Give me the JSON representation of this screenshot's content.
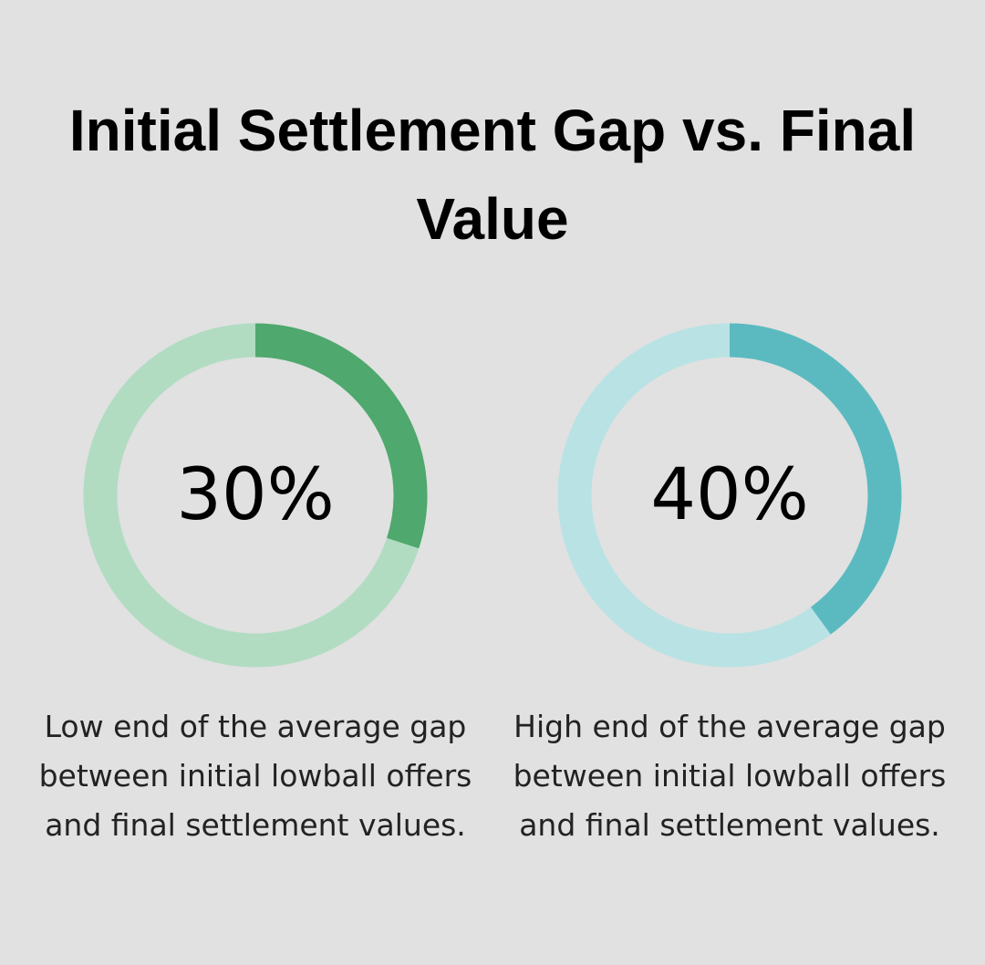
{
  "title": "Initial Settlement Gap vs. Final Value",
  "chart_data": [
    {
      "type": "donut",
      "values": [
        30
      ],
      "value_labels": [
        "30%"
      ],
      "color": "#4fa86d",
      "track_color": "#b1dcc2",
      "caption": "Low end of the average gap between initial lowball offers and final settlement values."
    },
    {
      "type": "donut",
      "values": [
        40
      ],
      "value_labels": [
        "40%"
      ],
      "color": "#5bbac0",
      "track_color": "#b9e2e4",
      "caption": "High end of the average gap between initial lowball offers and final settlement values."
    }
  ]
}
